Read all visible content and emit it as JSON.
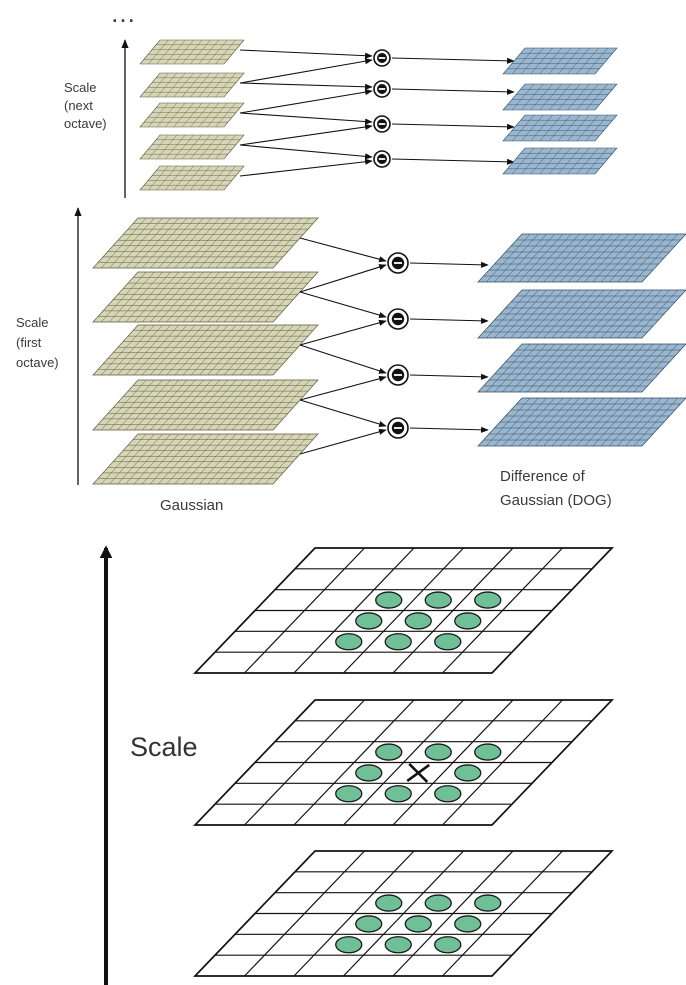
{
  "ellipsis": "…",
  "next_octave": {
    "label_lines": [
      "Scale",
      "(next",
      "octave)"
    ],
    "gaussian_count": 5,
    "dog_count": 4
  },
  "first_octave": {
    "label_lines": [
      "Scale",
      "(first",
      "octave)"
    ],
    "gaussian_count": 5,
    "dog_count": 4,
    "gaussian_label": "Gaussian",
    "dog_label_lines": [
      "Difference of",
      "Gaussian (DOG)"
    ]
  },
  "operator_symbol": "−",
  "extrema": {
    "axis_label": "Scale",
    "grid_size": 6,
    "center_marker": "×"
  },
  "colors": {
    "gaussian_fill": "#d6d5b6",
    "gaussian_line": "#5a5a3e",
    "dog_fill": "#9ab7cf",
    "dog_line": "#2e4b63",
    "neighbor_fill": "#6fbf97",
    "line": "#111111"
  }
}
